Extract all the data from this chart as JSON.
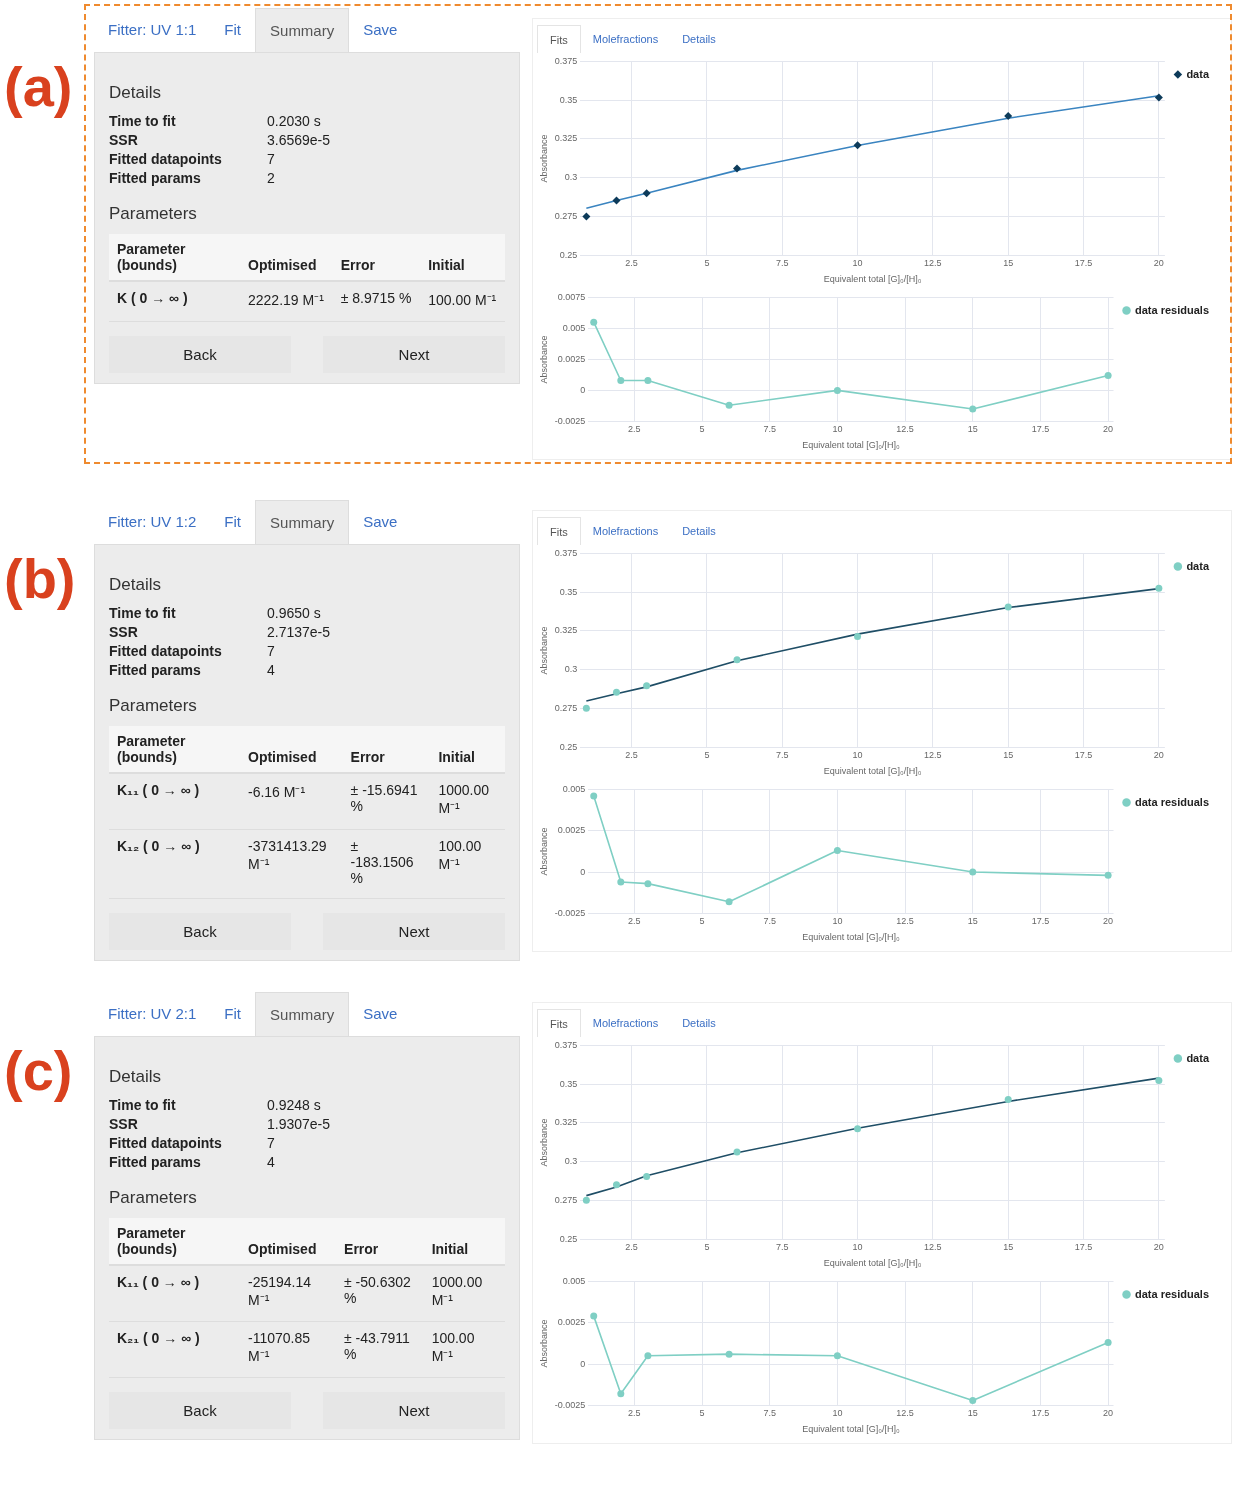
{
  "chart_data": [
    {
      "type": "other",
      "annotations": [
        "(a)",
        "Fitter: UV 1:1",
        "Fit",
        "Summary",
        "Save",
        "Details",
        "Time to fit",
        "0.2030 s",
        "SSR",
        "3.6569e-5",
        "Fitted datapoints",
        "7",
        "Fitted params",
        "2",
        "Parameters",
        "Parameter (bounds)",
        "Optimised",
        "Error",
        "Initial",
        "K ( 0 → ∞ )",
        "2222.19 M⁻¹",
        "± 8.9715 %",
        "100.00 M⁻¹",
        "Back",
        "Next"
      ]
    },
    {
      "type": "scatter",
      "annotations": [
        "Fits",
        "Molefractions",
        "Details"
      ],
      "xlabel": "Equivalent total [G]₀/[H]₀",
      "ylabel": "Absorbance",
      "xlim": [
        0.8,
        20.2
      ],
      "xticks": [
        2.5,
        5,
        7.5,
        10,
        12.5,
        15,
        17.5,
        20
      ],
      "ylim": [
        0.25,
        0.375
      ],
      "yticks": [
        0.25,
        0.275,
        0.3,
        0.325,
        0.35,
        0.375
      ],
      "grid": true,
      "legend": "top right",
      "marker": "diamond",
      "x": [
        1,
        2,
        3,
        6,
        10,
        15,
        20
      ],
      "series": [
        {
          "name": "data",
          "color": "#0d3b5a",
          "values": [
            0.275,
            0.2854,
            0.2901,
            0.306,
            0.321,
            0.3399,
            0.3517
          ]
        },
        {
          "type": "line",
          "marker": "none",
          "color": "#3a84c0",
          "values": [
            0.2804,
            0.2854,
            0.29,
            0.3048,
            0.3208,
            0.3384,
            0.3529
          ]
        }
      ]
    },
    {
      "type": "line",
      "xlabel": "Equivalent total [G]₀/[H]₀",
      "ylabel": "Absorbance",
      "xlim": [
        0.8,
        20.2
      ],
      "xticks": [
        2.5,
        5,
        7.5,
        10,
        12.5,
        15,
        17.5,
        20
      ],
      "ylim": [
        -0.0025,
        0.0075
      ],
      "yticks": [
        -0.0025,
        0,
        0.0025,
        0.005,
        0.0075
      ],
      "grid": true,
      "legend": "top right",
      "marker": "circle",
      "x": [
        1,
        2,
        3,
        6,
        10,
        15,
        20
      ],
      "series": [
        {
          "name": "data residuals",
          "color": "#7fcfc4",
          "values": [
            0.0055,
            0.0008,
            0.0008,
            -0.0012,
            0,
            -0.0015,
            0.0012
          ]
        }
      ]
    },
    {
      "type": "other",
      "annotations": [
        "(b)",
        "Fitter: UV 1:2",
        "Fit",
        "Summary",
        "Save",
        "Details",
        "Time to fit",
        "0.9650 s",
        "SSR",
        "2.7137e-5",
        "Fitted datapoints",
        "7",
        "Fitted params",
        "4",
        "Parameters",
        "Parameter (bounds)",
        "Optimised",
        "Error",
        "Initial",
        "K₁₁ ( 0 → ∞ )",
        "-6.16 M⁻¹",
        "± -15.6941 %",
        "1000.00 M⁻¹",
        "K₁₂ ( 0 → ∞ )",
        "-3731413.29 M⁻¹",
        "± -183.1506 %",
        "100.00 M⁻¹",
        "Back",
        "Next"
      ]
    },
    {
      "type": "scatter",
      "annotations": [
        "Fits",
        "Molefractions",
        "Details"
      ],
      "xlabel": "Equivalent total [G]₀/[H]₀",
      "ylabel": "Absorbance",
      "xlim": [
        0.8,
        20.2
      ],
      "xticks": [
        2.5,
        5,
        7.5,
        10,
        12.5,
        15,
        17.5,
        20
      ],
      "ylim": [
        0.25,
        0.375
      ],
      "yticks": [
        0.25,
        0.275,
        0.3,
        0.325,
        0.35,
        0.375
      ],
      "grid": true,
      "legend": "top right",
      "marker": "circle",
      "x": [
        1,
        2,
        3,
        6,
        10,
        15,
        20
      ],
      "series": [
        {
          "name": "data",
          "color": "#7fcfc4",
          "values": [
            0.2753,
            0.2855,
            0.2898,
            0.3064,
            0.3215,
            0.3404,
            0.3526
          ]
        },
        {
          "type": "line",
          "marker": "none",
          "color": "#1f4e66",
          "values": [
            0.2799,
            0.2846,
            0.289,
            0.3058,
            0.323,
            0.3401,
            0.3523
          ]
        }
      ]
    },
    {
      "type": "line",
      "xlabel": "Equivalent total [G]₀/[H]₀",
      "ylabel": "Absorbance",
      "xlim": [
        0.8,
        20.2
      ],
      "xticks": [
        2.5,
        5,
        7.5,
        10,
        12.5,
        15,
        17.5,
        20
      ],
      "ylim": [
        -0.0025,
        0.005
      ],
      "yticks": [
        -0.0025,
        0,
        0.0025,
        0.005
      ],
      "grid": true,
      "legend": "top right",
      "marker": "circle",
      "x": [
        1,
        2,
        3,
        6,
        10,
        15,
        20
      ],
      "series": [
        {
          "name": "data residuals",
          "color": "#7fcfc4",
          "values": [
            0.0046,
            -0.0006,
            -0.0007,
            -0.0018,
            0.0013,
            0,
            -0.0002
          ]
        }
      ]
    },
    {
      "type": "other",
      "annotations": [
        "(c)",
        "Fitter: UV 2:1",
        "Fit",
        "Summary",
        "Save",
        "Details",
        "Time to fit",
        "0.9248 s",
        "SSR",
        "1.9307e-5",
        "Fitted datapoints",
        "7",
        "Fitted params",
        "4",
        "Parameters",
        "Parameter (bounds)",
        "Optimised",
        "Error",
        "Initial",
        "K₁₁ ( 0 → ∞ )",
        "-25194.14 M⁻¹",
        "± -50.6302 %",
        "1000.00 M⁻¹",
        "K₂₁ ( 0 → ∞ )",
        "-11070.85 M⁻¹",
        "± -43.7911 %",
        "100.00 M⁻¹",
        "Back",
        "Next"
      ]
    },
    {
      "type": "scatter",
      "annotations": [
        "Fits",
        "Molefractions",
        "Details"
      ],
      "xlabel": "Equivalent total [G]₀/[H]₀",
      "ylabel": "Absorbance",
      "xlim": [
        0.8,
        20.2
      ],
      "xticks": [
        2.5,
        5,
        7.5,
        10,
        12.5,
        15,
        17.5,
        20
      ],
      "ylim": [
        0.25,
        0.375
      ],
      "yticks": [
        0.25,
        0.275,
        0.3,
        0.325,
        0.35,
        0.375
      ],
      "grid": true,
      "legend": "top right",
      "marker": "circle",
      "x": [
        1,
        2,
        3,
        6,
        10,
        15,
        20
      ],
      "series": [
        {
          "name": "data",
          "color": "#7fcfc4",
          "values": [
            0.2752,
            0.2852,
            0.2905,
            0.3063,
            0.3213,
            0.3401,
            0.3524
          ]
        },
        {
          "type": "line",
          "marker": "none",
          "color": "#1f4e66",
          "values": [
            0.2782,
            0.2837,
            0.291,
            0.3058,
            0.3216,
            0.3389,
            0.3539
          ]
        }
      ]
    },
    {
      "type": "line",
      "xlabel": "Equivalent total [G]₀/[H]₀",
      "ylabel": "Absorbance",
      "xlim": [
        0.8,
        20.2
      ],
      "xticks": [
        2.5,
        5,
        7.5,
        10,
        12.5,
        15,
        17.5,
        20
      ],
      "ylim": [
        -0.0025,
        0.005
      ],
      "yticks": [
        -0.0025,
        0,
        0.0025,
        0.005
      ],
      "grid": true,
      "legend": "top right",
      "marker": "circle",
      "x": [
        1,
        2,
        3,
        6,
        10,
        15,
        20
      ],
      "series": [
        {
          "name": "data residuals",
          "color": "#7fcfc4",
          "values": [
            0.0029,
            -0.0018,
            0.0005,
            0.0006,
            0.0005,
            -0.0022,
            0.0013
          ]
        }
      ]
    }
  ]
}
